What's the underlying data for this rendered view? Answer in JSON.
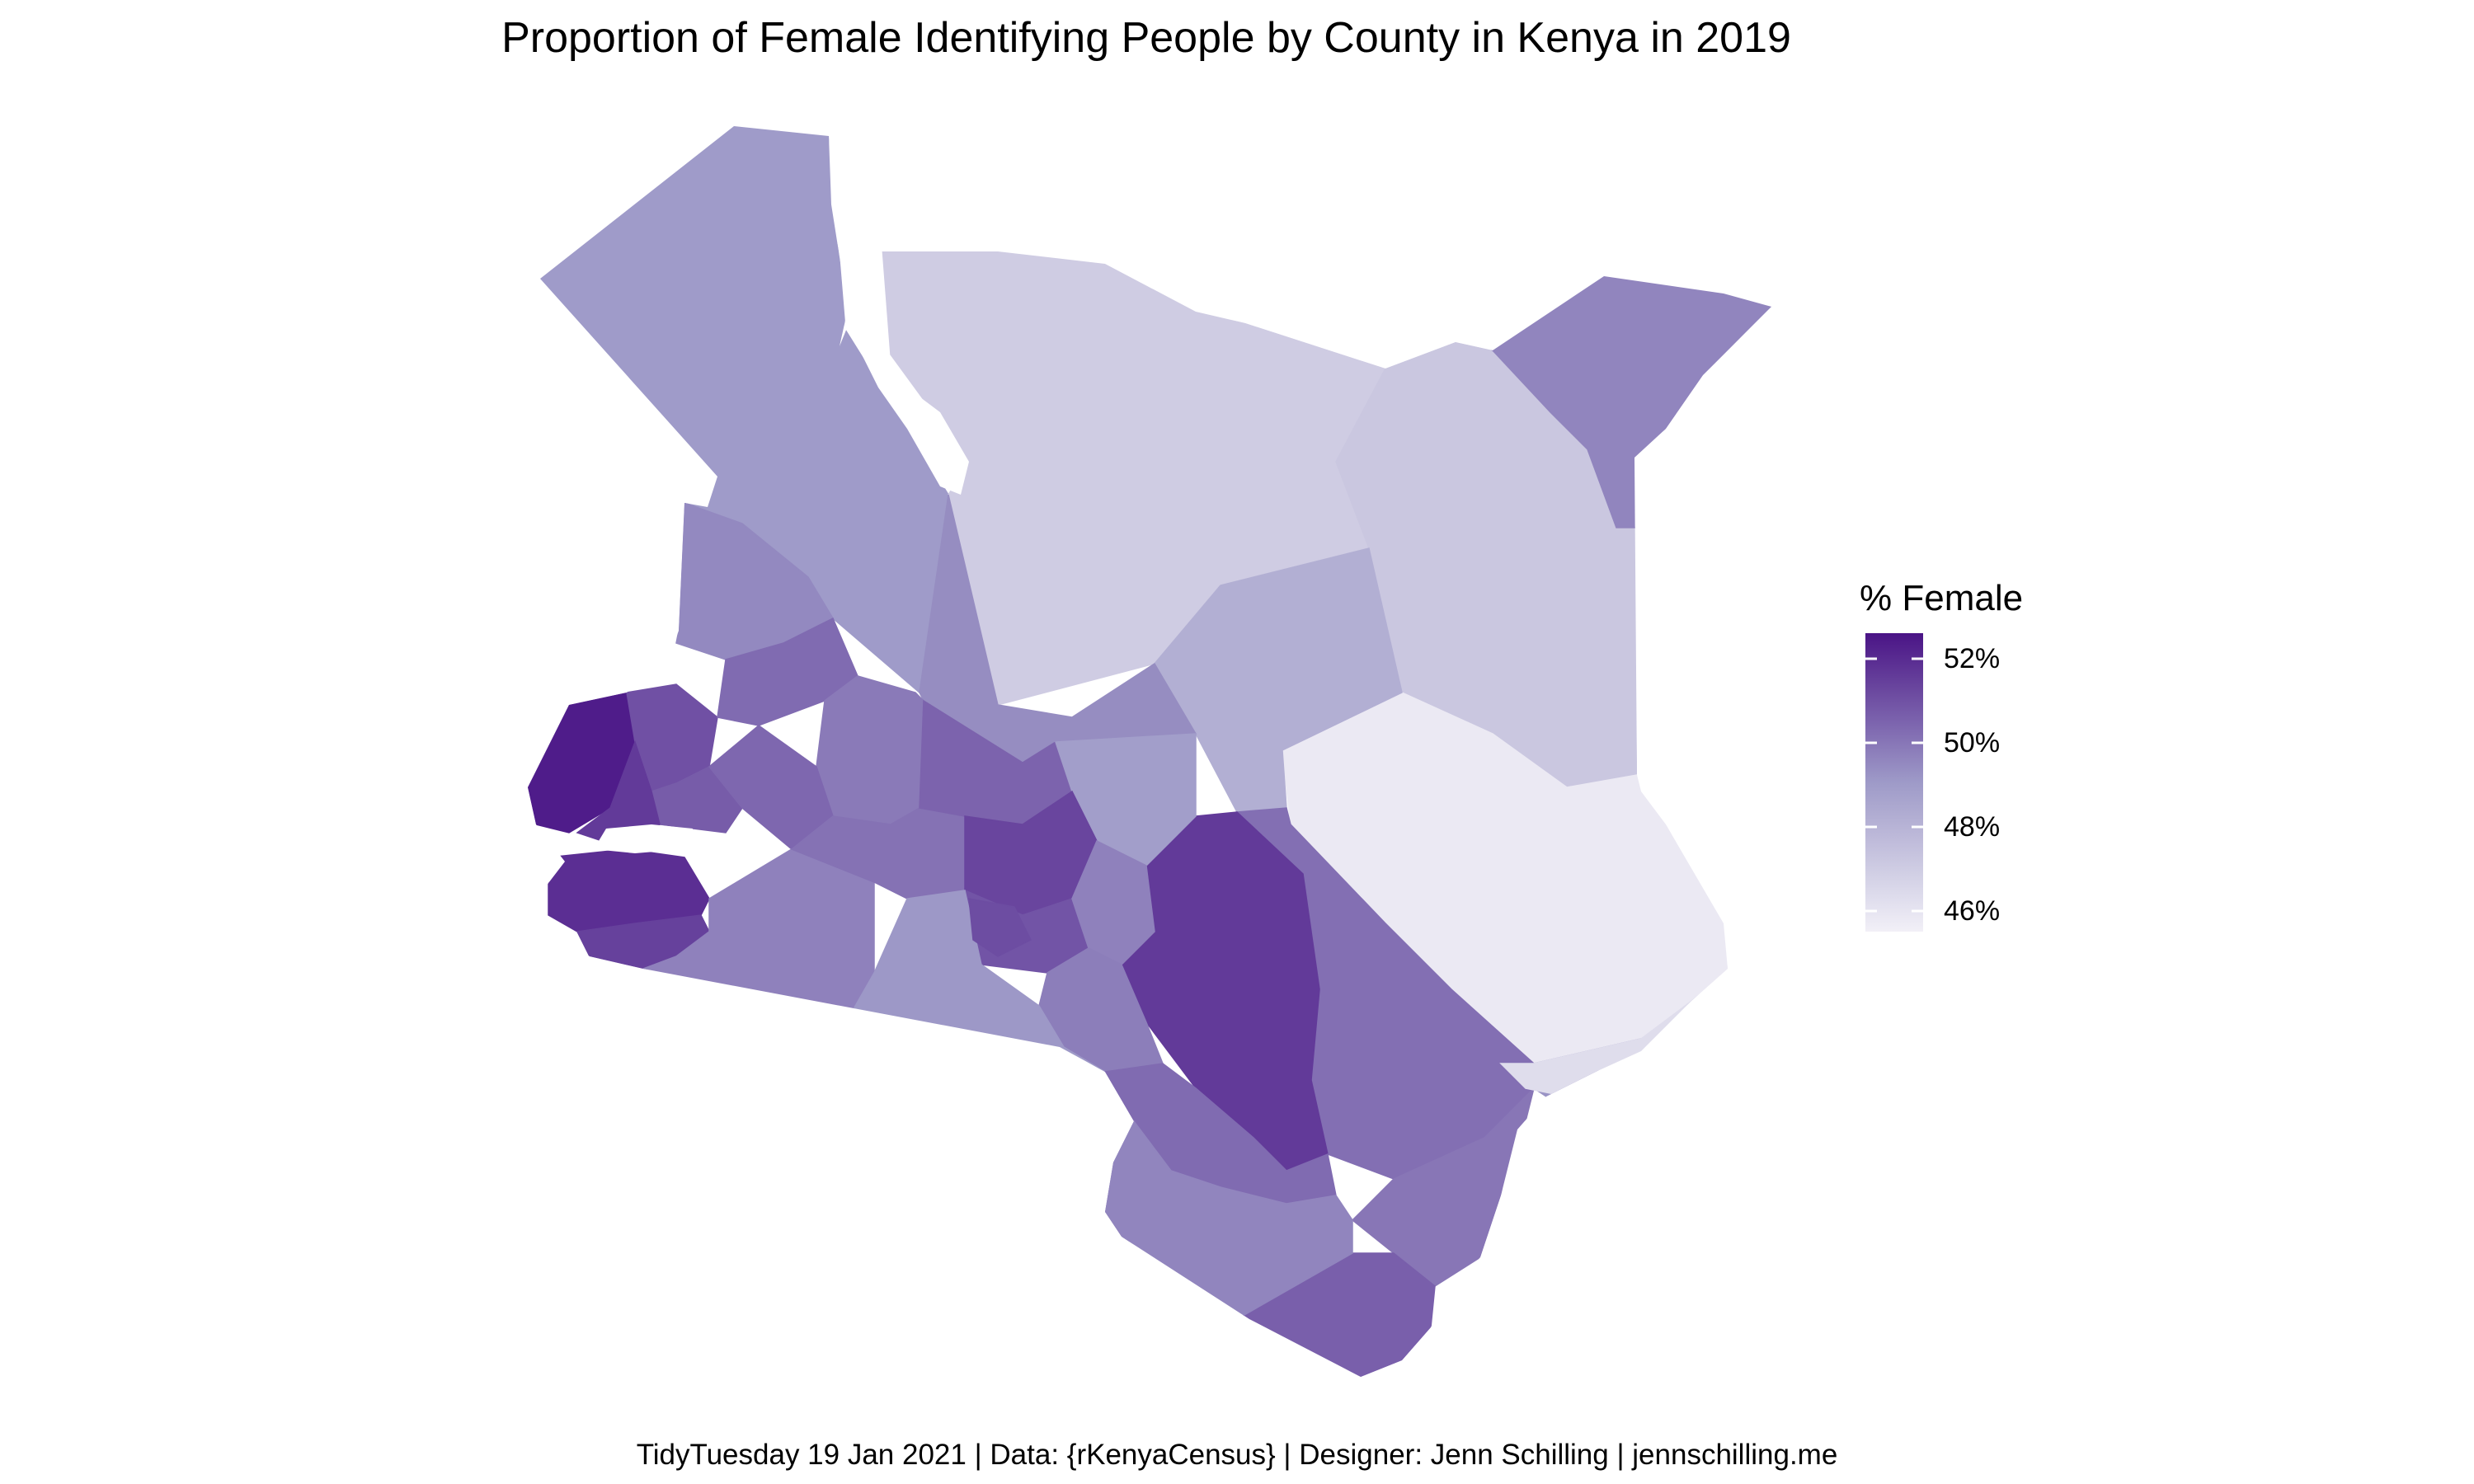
{
  "chart_data": {
    "type": "choropleth",
    "title": "Proportion of Female Identifying People by County in Kenya in 2019",
    "caption": "TidyTuesday 19 Jan 2021 | Data: {rKenyaCensus} | Designer: Jenn Schilling | jennschilling.me",
    "legend": {
      "title": "% Female",
      "placement": "right",
      "range": [
        45.5,
        52.6
      ],
      "ticks": [
        {
          "value": 52,
          "label": "52%"
        },
        {
          "value": 50,
          "label": "50%"
        },
        {
          "value": 48,
          "label": "48%"
        },
        {
          "value": 46,
          "label": "46%"
        }
      ],
      "color_low": "#f2f0f7",
      "color_high": "#4a1486"
    },
    "regions": [
      {
        "value": 49.0
      },
      {
        "value": 47.0
      },
      {
        "value": 47.2
      },
      {
        "value": 49.6
      },
      {
        "value": 45.8
      },
      {
        "value": 48.2
      },
      {
        "value": 49.4
      },
      {
        "value": 50.2
      },
      {
        "value": 49.2
      },
      {
        "value": 50.0
      },
      {
        "value": 50.6
      },
      {
        "value": 51.6
      },
      {
        "value": 52.4
      },
      {
        "value": 51.9
      },
      {
        "value": 51.0
      },
      {
        "value": 49.5
      },
      {
        "value": 50.3
      },
      {
        "value": 50.7
      },
      {
        "value": 49.9
      },
      {
        "value": 50.4
      },
      {
        "value": 51.4
      },
      {
        "value": 49.7
      },
      {
        "value": 50.1
      },
      {
        "value": 50.5
      },
      {
        "value": 48.9
      },
      {
        "value": 51.3
      },
      {
        "value": 50.9
      },
      {
        "value": 49.7
      },
      {
        "value": 49.8
      },
      {
        "value": 49.1
      },
      {
        "value": 50.3
      },
      {
        "value": 46.3
      },
      {
        "value": 49.6
      },
      {
        "value": 51.1
      },
      {
        "value": 51.6
      }
    ]
  }
}
